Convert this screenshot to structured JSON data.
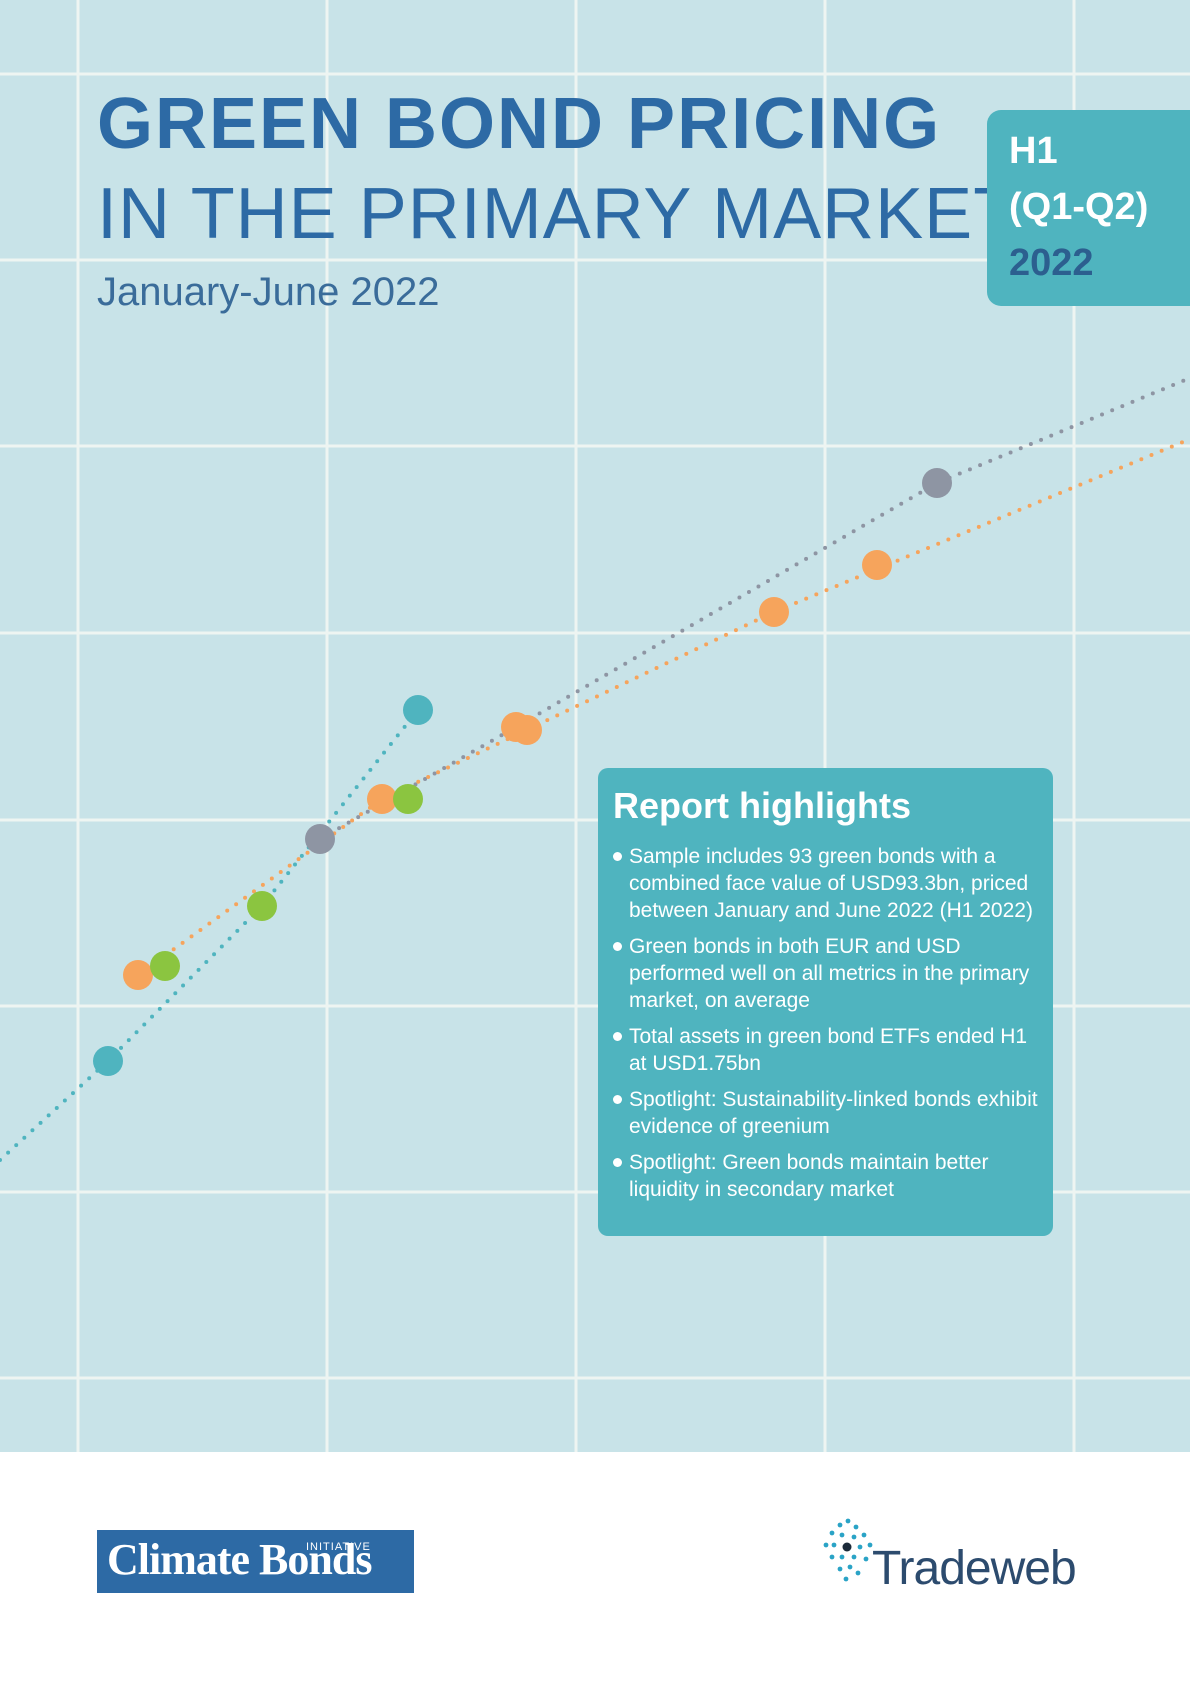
{
  "title": {
    "line1": "GREEN BOND PRICING",
    "line2": "IN THE PRIMARY MARKET:",
    "subtitle": "January-June 2022"
  },
  "badge": {
    "line1": "H1",
    "line2": "(Q1-Q2)",
    "line3": "2022"
  },
  "highlights": {
    "heading": "Report highlights",
    "items": [
      "Sample includes 93 green bonds with a combined face value of USD93.3bn, priced between January and June 2022 (H1 2022)",
      "Green bonds in both EUR and USD performed well on all metrics in the primary market, on average",
      "Total assets in green bond ETFs ended H1 at USD1.75bn",
      "Spotlight: Sustainability-linked bonds exhibit evidence of greenium",
      "Spotlight: Green bonds maintain better liquidity in secondary market"
    ]
  },
  "logos": {
    "climate_bonds": "Climate Bonds",
    "climate_bonds_sub": "INITIATIVE",
    "tradeweb": "Tradeweb"
  },
  "colors": {
    "background": "#c8e3e8",
    "title_blue": "#2d6aa5",
    "teal": "#4fb4bf",
    "orange": "#f6a45c",
    "gray": "#8e95a3",
    "green": "#8bc540",
    "grid": "#eef5f2"
  }
}
